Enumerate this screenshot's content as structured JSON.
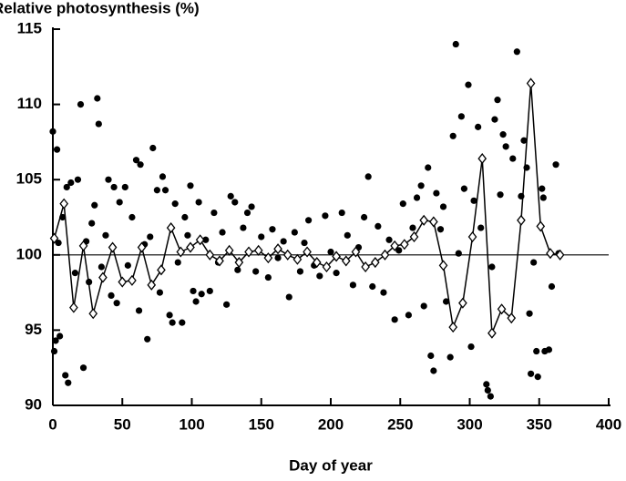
{
  "chart_data": {
    "type": "scatter",
    "title": "Relative photosynthesis (%)",
    "x_label": "Day of year",
    "xlim": [
      0,
      400
    ],
    "ylim": [
      90,
      115
    ],
    "xticks": [
      0,
      50,
      100,
      150,
      200,
      250,
      300,
      350,
      400
    ],
    "yticks": [
      90,
      95,
      100,
      105,
      110,
      115
    ],
    "reference_line": 100,
    "series": [
      {
        "style": "dots",
        "color": "#000000",
        "x": [
          0,
          1,
          2,
          3,
          4,
          5,
          7,
          9,
          10,
          11,
          13,
          16,
          18,
          20,
          22,
          24,
          26,
          28,
          30,
          32,
          33,
          35,
          38,
          40,
          42,
          44,
          46,
          48,
          52,
          54,
          57,
          60,
          62,
          63,
          66,
          68,
          70,
          72,
          75,
          77,
          79,
          81,
          84,
          86,
          88,
          90,
          93,
          95,
          97,
          99,
          101,
          103,
          105,
          107,
          110,
          113,
          116,
          119,
          122,
          125,
          128,
          131,
          133,
          137,
          140,
          143,
          146,
          150,
          155,
          158,
          162,
          166,
          170,
          174,
          178,
          181,
          184,
          188,
          192,
          196,
          200,
          204,
          208,
          212,
          216,
          220,
          224,
          227,
          230,
          234,
          238,
          242,
          246,
          249,
          252,
          256,
          259,
          262,
          265,
          267,
          270,
          272,
          274,
          276,
          279,
          281,
          283,
          286,
          288,
          290,
          292,
          294,
          296,
          299,
          301,
          303,
          306,
          308,
          312,
          313,
          315,
          316,
          318,
          320,
          322,
          324,
          326,
          331,
          334,
          337,
          339,
          341,
          343,
          344,
          346,
          348,
          349,
          352,
          353,
          354,
          357,
          359,
          362,
          364
        ],
        "values": [
          108.2,
          93.6,
          94.3,
          107,
          100.8,
          94.6,
          102.5,
          92,
          104.5,
          91.5,
          104.8,
          98.8,
          105,
          110,
          92.5,
          100.9,
          98.2,
          102.1,
          103.3,
          110.4,
          108.7,
          99.2,
          101.3,
          105,
          97.3,
          104.5,
          96.8,
          103.5,
          104.5,
          99.3,
          102.5,
          106.3,
          96.3,
          106,
          100.7,
          94.4,
          101.2,
          107.1,
          104.3,
          97.5,
          105.2,
          104.3,
          96,
          95.5,
          103.4,
          99.5,
          95.5,
          102.5,
          101.3,
          104.6,
          97.6,
          96.9,
          103.5,
          97.4,
          101,
          97.6,
          102.8,
          99.5,
          101.5,
          96.7,
          103.9,
          103.5,
          99,
          101.8,
          102.8,
          103.2,
          98.9,
          101.2,
          98.5,
          101.7,
          99.8,
          100.9,
          97.2,
          101.5,
          98.9,
          100.8,
          102.3,
          99.3,
          98.6,
          102.6,
          100.2,
          98.8,
          102.8,
          101.3,
          98,
          100.5,
          102.5,
          105.2,
          97.9,
          101.9,
          97.5,
          101,
          95.7,
          100.3,
          103.4,
          96,
          101.8,
          103.8,
          104.6,
          96.6,
          105.8,
          93.3,
          92.3,
          104.1,
          101.7,
          103.2,
          96.9,
          93.2,
          107.9,
          114,
          100.1,
          109.2,
          104.4,
          111.3,
          93.9,
          103.6,
          108.5,
          101.8,
          91.4,
          91,
          90.6,
          99.2,
          109,
          110.3,
          104,
          108,
          107.2,
          106.4,
          113.5,
          103.9,
          107.6,
          105.8,
          96.1,
          92.1,
          99.5,
          93.6,
          91.9,
          104.4,
          103.8,
          93.6,
          93.7,
          97.9,
          106,
          100.1
        ]
      },
      {
        "style": "line-diamond",
        "color": "#000000",
        "x": [
          1,
          8,
          15,
          22,
          29,
          36,
          43,
          50,
          57,
          64,
          71,
          78,
          85,
          92,
          99,
          106,
          113,
          120,
          127,
          134,
          141,
          148,
          155,
          162,
          169,
          176,
          183,
          190,
          197,
          204,
          211,
          218,
          225,
          232,
          239,
          246,
          253,
          260,
          267,
          274,
          281,
          288,
          295,
          302,
          309,
          316,
          323,
          330,
          337,
          344,
          351,
          358,
          365
        ],
        "values": [
          101.1,
          103.4,
          96.5,
          100.6,
          96.1,
          98.5,
          100.5,
          98.2,
          98.3,
          100.5,
          98,
          99,
          101.8,
          100.2,
          100.5,
          101,
          100,
          99.6,
          100.3,
          99.5,
          100.2,
          100.3,
          99.8,
          100.4,
          100,
          99.7,
          100.2,
          99.5,
          99.2,
          99.9,
          99.6,
          100.2,
          99.2,
          99.5,
          100,
          100.6,
          100.7,
          101.2,
          102.3,
          102.2,
          99.3,
          95.2,
          96.8,
          101.2,
          106.4,
          94.8,
          96.4,
          95.8,
          102.3,
          111.4,
          101.9,
          100.1,
          100
        ]
      }
    ]
  }
}
